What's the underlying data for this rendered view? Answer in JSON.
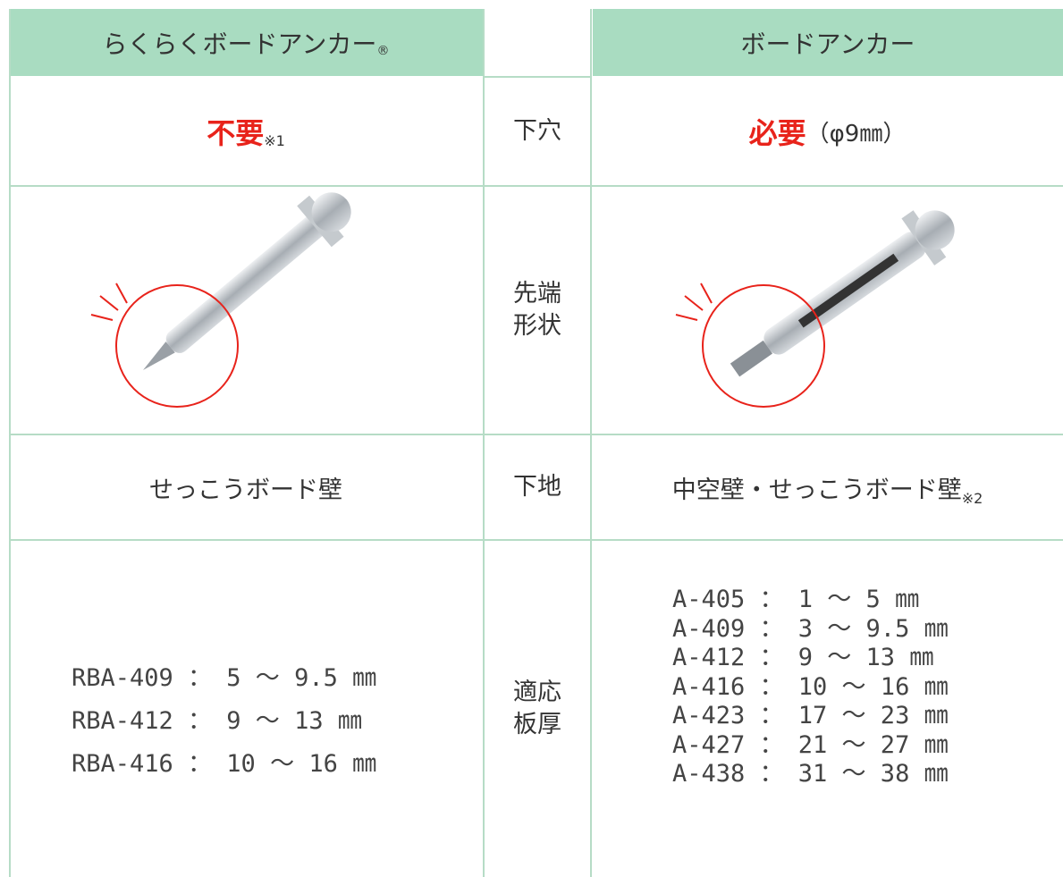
{
  "header": {
    "left": "らくらくボードアンカー",
    "left_mark": "®",
    "right": "ボードアンカー"
  },
  "rows": [
    {
      "label": [
        "下穴"
      ],
      "left": "不要",
      "left_note": "※1",
      "right": "必要",
      "right_note": "（φ9㎜）"
    },
    {
      "label": [
        "先端",
        "形状"
      ]
    },
    {
      "label": [
        "下地"
      ],
      "left": "せっこうボード壁",
      "right": "中空壁・せっこうボード壁",
      "right_note": "※2"
    },
    {
      "label": [
        "適応",
        "板厚"
      ],
      "left_lines": [
        "RBA-409 ： 5 ～ 9.5 ㎜",
        "RBA-412 ： 9 ～ 13 ㎜",
        "RBA-416 ： 10 ～ 16 ㎜"
      ],
      "right_lines": [
        "A-405 ： 1 ～ 5 ㎜",
        "A-409 ： 3 ～ 9.5 ㎜",
        "A-412 ： 9 ～ 13 ㎜",
        "A-416 ： 10 ～ 16 ㎜",
        "A-423 ： 17 ～ 23 ㎜",
        "A-427 ： 21 ～ 27 ㎜",
        "A-438 ： 31 ～ 38 ㎜"
      ]
    }
  ]
}
